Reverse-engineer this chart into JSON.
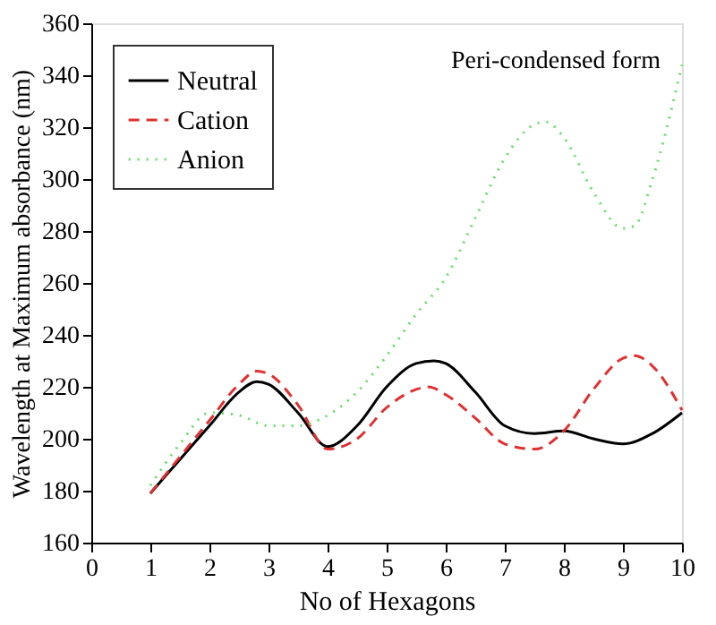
{
  "chart_data": {
    "type": "line",
    "xlabel": "No of Hexagons",
    "ylabel": "Wavelength at Maximum absorbance (nm)",
    "annotations": [
      "Peri-condensed form"
    ],
    "xlim": [
      0,
      10
    ],
    "xticks": [
      0,
      1,
      2,
      3,
      4,
      5,
      6,
      7,
      8,
      9,
      10
    ],
    "ylim": [
      160,
      360
    ],
    "yticks": [
      160,
      180,
      200,
      220,
      240,
      260,
      280,
      300,
      320,
      340,
      360
    ],
    "grid": false,
    "legend": "top left",
    "marker": "none",
    "series": [
      {
        "name": "Neutral",
        "color": "#000000",
        "line_style": "solid",
        "x": [
          1,
          1.5,
          2,
          2.5,
          2.8,
          3,
          3.5,
          4,
          4.5,
          5,
          5.5,
          5.8,
          6,
          6.5,
          7,
          7.5,
          8,
          8.5,
          9,
          9.5,
          10
        ],
        "values": [
          179,
          192,
          205,
          218,
          222,
          221,
          210,
          197,
          205,
          220,
          229,
          230,
          229,
          218,
          205,
          202,
          203,
          200,
          198,
          202,
          210
        ]
      },
      {
        "name": "Cation",
        "color": "#e03030",
        "line_style": "dashed",
        "x": [
          1,
          1.5,
          2,
          2.5,
          2.8,
          3,
          3.5,
          4,
          4.5,
          5,
          5.5,
          5.7,
          6,
          6.5,
          7,
          7.5,
          8,
          8.5,
          9,
          9.2,
          9.5,
          10
        ],
        "values": [
          179,
          193,
          207,
          221,
          226,
          225,
          213,
          196,
          200,
          212,
          219,
          220,
          217,
          208,
          198,
          196,
          203,
          219,
          231,
          232,
          228,
          211
        ]
      },
      {
        "name": "Anion",
        "color": "#66dd66",
        "line_style": "dotted",
        "x": [
          1,
          1.5,
          2,
          2.5,
          3,
          3.5,
          4,
          4.5,
          5,
          5.5,
          6,
          6.5,
          7,
          7.5,
          7.7,
          8,
          8.5,
          9,
          9.2,
          9.5,
          10
        ],
        "values": [
          182,
          198,
          210,
          209,
          205,
          205,
          209,
          218,
          232,
          248,
          262,
          285,
          308,
          321,
          322,
          316,
          295,
          281,
          282,
          300,
          344
        ]
      }
    ]
  }
}
